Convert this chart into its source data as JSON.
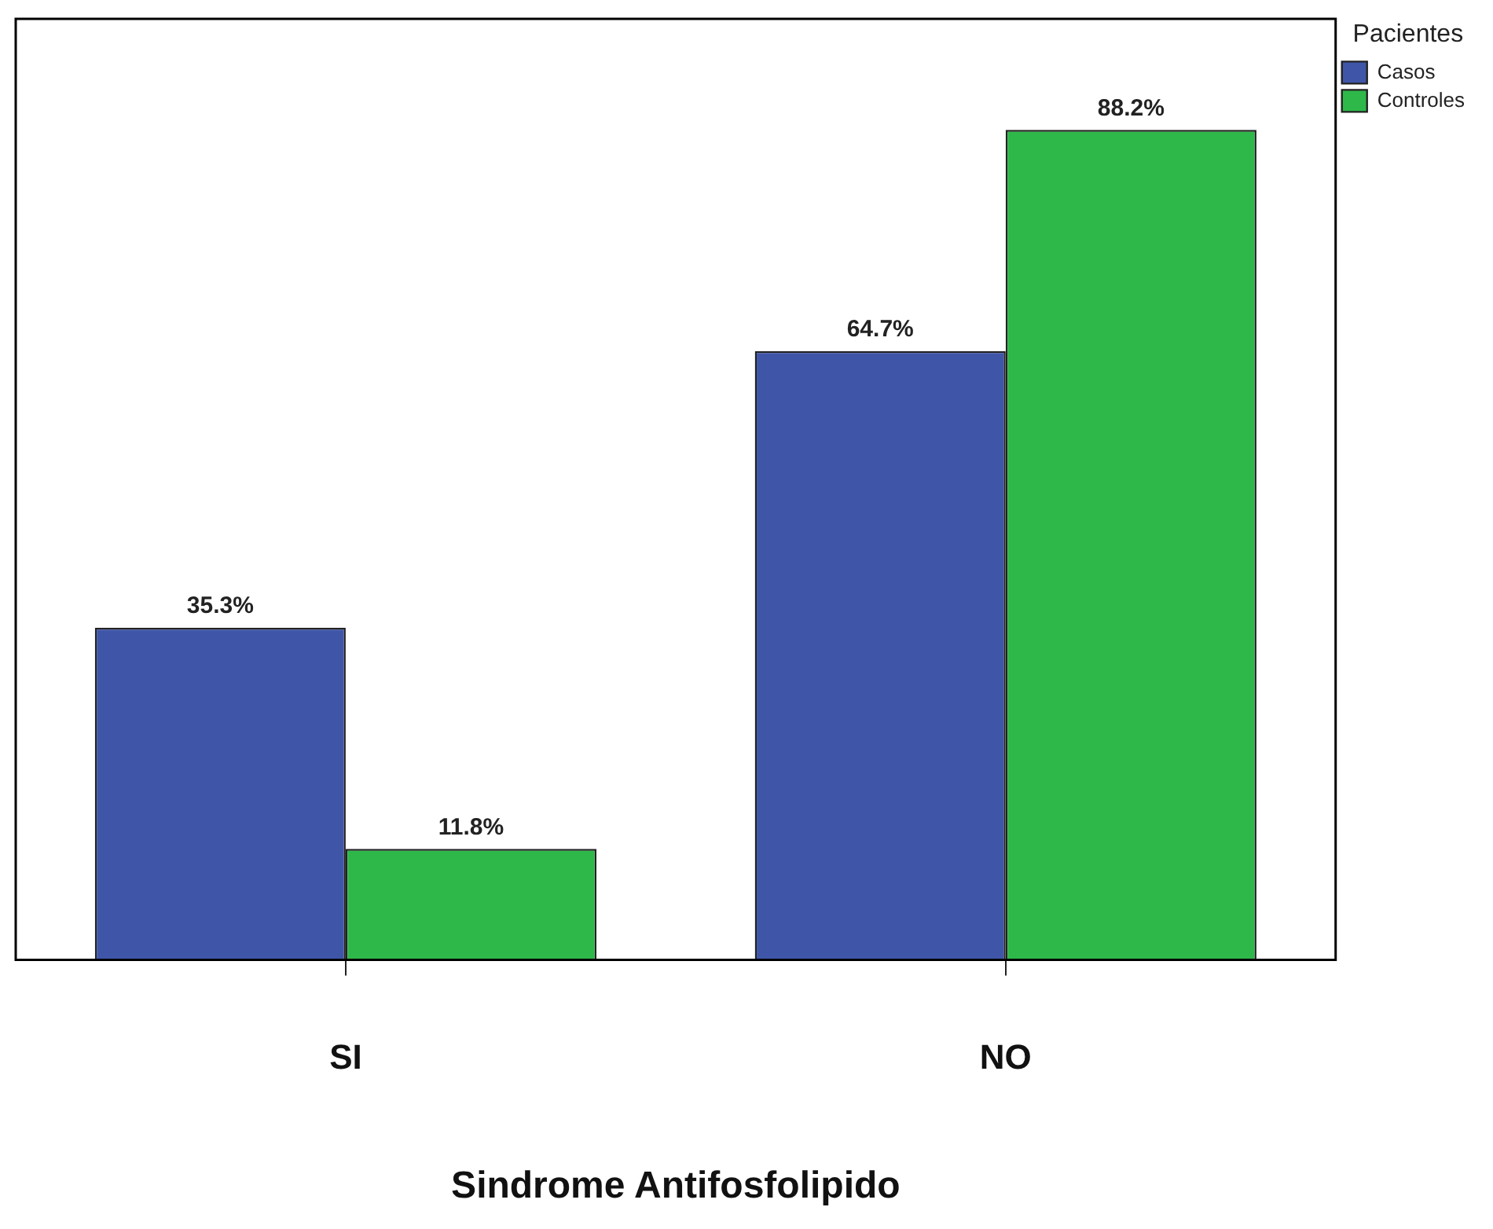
{
  "chart_data": {
    "type": "bar",
    "xlabel": "Sindrome Antifosfolipido",
    "legend_title": "Pacientes",
    "categories": [
      "SI",
      "NO"
    ],
    "series": [
      {
        "name": "Casos",
        "color": "#3f56a8",
        "values": [
          35.3,
          64.7
        ],
        "value_labels": [
          "35.3%",
          "64.7%"
        ]
      },
      {
        "name": "Controles",
        "color": "#2eb84a",
        "values": [
          11.8,
          88.2
        ],
        "value_labels": [
          "11.8%",
          "88.2%"
        ]
      }
    ],
    "grid": false,
    "legend": "top right",
    "tick_labels": "x"
  }
}
